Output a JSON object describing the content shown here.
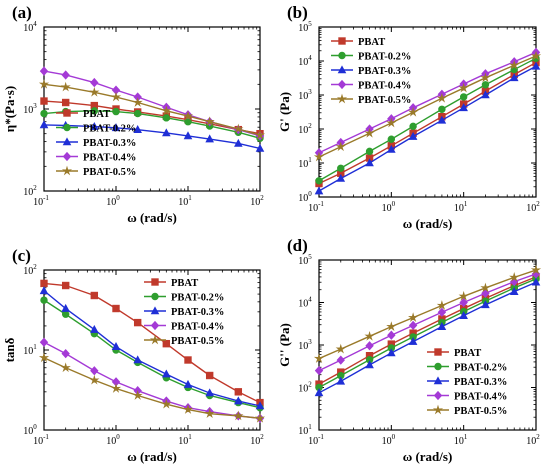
{
  "series_colors": {
    "PBAT": "#c0392b",
    "PBAT-0.2%": "#2e9e2e",
    "PBAT-0.3%": "#1f2fd6",
    "PBAT-0.4%": "#a43ad6",
    "PBAT-0.5%": "#9a7a2a"
  },
  "series_markers": {
    "PBAT": "square",
    "PBAT-0.2%": "circle",
    "PBAT-0.3%": "triangle",
    "PBAT-0.4%": "diamond",
    "PBAT-0.5%": "star"
  },
  "chart_data": [
    {
      "panel": "(a)",
      "type": "line",
      "xlabel": "ω (rad/s)",
      "ylabel": "η*(Pa·s)",
      "xscale": "log",
      "yscale": "log",
      "xlim": [
        0.1,
        100
      ],
      "ylim": [
        100,
        10000
      ],
      "legend": "bottom-left",
      "series": [
        {
          "name": "PBAT",
          "x": [
            0.1,
            0.2,
            0.5,
            1,
            2,
            5,
            10,
            20,
            50,
            100
          ],
          "y": [
            1250,
            1200,
            1100,
            1000,
            920,
            820,
            740,
            660,
            560,
            500
          ]
        },
        {
          "name": "PBAT-0.2%",
          "x": [
            0.1,
            0.2,
            0.5,
            1,
            2,
            5,
            10,
            20,
            50,
            100
          ],
          "y": [
            880,
            930,
            950,
            930,
            880,
            780,
            700,
            620,
            520,
            440
          ]
        },
        {
          "name": "PBAT-0.3%",
          "x": [
            0.1,
            0.2,
            0.5,
            1,
            2,
            5,
            10,
            20,
            50,
            100
          ],
          "y": [
            640,
            630,
            610,
            590,
            560,
            510,
            470,
            430,
            380,
            330
          ]
        },
        {
          "name": "PBAT-0.4%",
          "x": [
            0.1,
            0.2,
            0.5,
            1,
            2,
            5,
            10,
            20,
            50,
            100
          ],
          "y": [
            2900,
            2600,
            2100,
            1700,
            1400,
            1050,
            850,
            700,
            560,
            470
          ]
        },
        {
          "name": "PBAT-0.5%",
          "x": [
            0.1,
            0.2,
            0.5,
            1,
            2,
            5,
            10,
            20,
            50,
            100
          ],
          "y": [
            2000,
            1850,
            1600,
            1400,
            1200,
            950,
            820,
            700,
            570,
            480
          ]
        }
      ]
    },
    {
      "panel": "(b)",
      "type": "line",
      "xlabel": "ω (rad/s)",
      "ylabel": "G' (Pa)",
      "xscale": "log",
      "yscale": "log",
      "xlim": [
        0.1,
        100
      ],
      "ylim": [
        1,
        100000
      ],
      "legend": "top-left",
      "series": [
        {
          "name": "PBAT",
          "x": [
            0.1,
            0.2,
            0.5,
            1,
            2,
            5,
            10,
            20,
            50,
            100
          ],
          "y": [
            2.5,
            5,
            14,
            32,
            75,
            230,
            540,
            1300,
            4000,
            9000
          ]
        },
        {
          "name": "PBAT-0.2%",
          "x": [
            0.1,
            0.2,
            0.5,
            1,
            2,
            5,
            10,
            20,
            50,
            100
          ],
          "y": [
            3,
            7,
            22,
            50,
            120,
            380,
            880,
            2000,
            5600,
            12000
          ]
        },
        {
          "name": "PBAT-0.3%",
          "x": [
            0.1,
            0.2,
            0.5,
            1,
            2,
            5,
            10,
            20,
            50,
            100
          ],
          "y": [
            1.5,
            3.5,
            10,
            25,
            60,
            180,
            420,
            1000,
            3200,
            7000
          ]
        },
        {
          "name": "PBAT-0.4%",
          "x": [
            0.1,
            0.2,
            0.5,
            1,
            2,
            5,
            10,
            20,
            50,
            100
          ],
          "y": [
            20,
            40,
            100,
            200,
            420,
            1050,
            2100,
            4200,
            9500,
            18000
          ]
        },
        {
          "name": "PBAT-0.5%",
          "x": [
            0.1,
            0.2,
            0.5,
            1,
            2,
            5,
            10,
            20,
            50,
            100
          ],
          "y": [
            15,
            30,
            75,
            150,
            310,
            800,
            1600,
            3200,
            7500,
            14000
          ]
        }
      ]
    },
    {
      "panel": "(c)",
      "type": "line",
      "xlabel": "ω (rad/s)",
      "ylabel": "tanδ",
      "xscale": "log",
      "yscale": "log",
      "xlim": [
        0.1,
        100
      ],
      "ylim": [
        1,
        100
      ],
      "legend": "top-right",
      "series": [
        {
          "name": "PBAT",
          "x": [
            0.1,
            0.2,
            0.5,
            1,
            2,
            5,
            10,
            20,
            50,
            100
          ],
          "y": [
            68,
            64,
            48,
            33,
            22,
            12,
            7.5,
            4.8,
            3.0,
            2.2
          ]
        },
        {
          "name": "PBAT-0.2%",
          "x": [
            0.1,
            0.2,
            0.5,
            1,
            2,
            5,
            10,
            20,
            50,
            100
          ],
          "y": [
            42,
            28,
            16,
            10,
            7,
            4.5,
            3.4,
            2.7,
            2.2,
            1.9
          ]
        },
        {
          "name": "PBAT-0.3%",
          "x": [
            0.1,
            0.2,
            0.5,
            1,
            2,
            5,
            10,
            20,
            50,
            100
          ],
          "y": [
            55,
            33,
            18,
            11,
            7.5,
            5.0,
            3.7,
            2.9,
            2.3,
            2.0
          ]
        },
        {
          "name": "PBAT-0.4%",
          "x": [
            0.1,
            0.2,
            0.5,
            1,
            2,
            5,
            10,
            20,
            50,
            100
          ],
          "y": [
            12.5,
            9,
            5.5,
            4,
            3.1,
            2.3,
            1.9,
            1.7,
            1.5,
            1.4
          ]
        },
        {
          "name": "PBAT-0.5%",
          "x": [
            0.1,
            0.2,
            0.5,
            1,
            2,
            5,
            10,
            20,
            50,
            100
          ],
          "y": [
            8,
            6,
            4.2,
            3.3,
            2.7,
            2.1,
            1.8,
            1.6,
            1.5,
            1.4
          ]
        }
      ]
    },
    {
      "panel": "(d)",
      "type": "line",
      "xlabel": "ω (rad/s)",
      "ylabel": "G'' (Pa)",
      "xscale": "log",
      "yscale": "log",
      "xlim": [
        0.1,
        100
      ],
      "ylim": [
        10,
        100000
      ],
      "legend": "bottom-right",
      "series": [
        {
          "name": "PBAT",
          "x": [
            0.1,
            0.2,
            0.5,
            1,
            2,
            5,
            10,
            20,
            50,
            100
          ],
          "y": [
            120,
            230,
            560,
            1050,
            1900,
            4100,
            7200,
            12500,
            25000,
            40000
          ]
        },
        {
          "name": "PBAT-0.2%",
          "x": [
            0.1,
            0.2,
            0.5,
            1,
            2,
            5,
            10,
            20,
            50,
            100
          ],
          "y": [
            100,
            190,
            450,
            850,
            1550,
            3400,
            6100,
            10800,
            22000,
            36000
          ]
        },
        {
          "name": "PBAT-0.3%",
          "x": [
            0.1,
            0.2,
            0.5,
            1,
            2,
            5,
            10,
            20,
            50,
            100
          ],
          "y": [
            75,
            140,
            340,
            650,
            1200,
            2700,
            4900,
            8800,
            18000,
            30000
          ]
        },
        {
          "name": "PBAT-0.4%",
          "x": [
            0.1,
            0.2,
            0.5,
            1,
            2,
            5,
            10,
            20,
            50,
            100
          ],
          "y": [
            250,
            440,
            960,
            1700,
            2900,
            5900,
            10000,
            16500,
            31000,
            47000
          ]
        },
        {
          "name": "PBAT-0.5%",
          "x": [
            0.1,
            0.2,
            0.5,
            1,
            2,
            5,
            10,
            20,
            50,
            100
          ],
          "y": [
            480,
            800,
            1600,
            2700,
            4400,
            8500,
            14000,
            22000,
            39000,
            58000
          ]
        }
      ]
    }
  ]
}
